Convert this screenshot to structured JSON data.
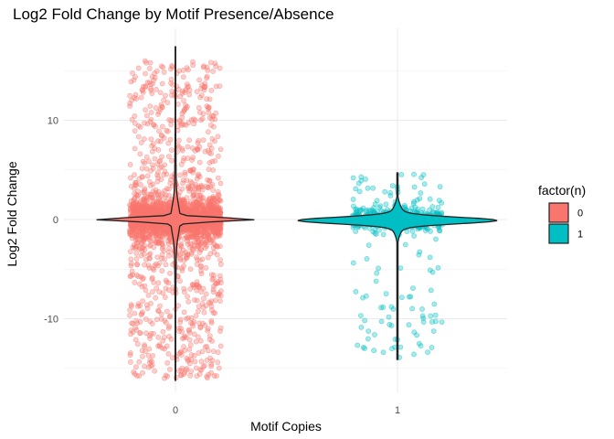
{
  "chart_data": {
    "type": "violin+jitter",
    "title": "Log2 Fold Change by Motif Presence/Absence",
    "xlabel": "Motif Copies",
    "ylabel": "Log2 Fold Change",
    "categories": [
      "0",
      "1"
    ],
    "yticks": [
      -10,
      0,
      10
    ],
    "ytick_labels": [
      "-10",
      "0",
      "10"
    ],
    "ylim": [
      -16.8,
      18.2
    ],
    "grid": true,
    "legend": {
      "title": "factor(n)",
      "position": "right",
      "entries": [
        "0",
        "1"
      ]
    },
    "colors": {
      "0": "#F8766D",
      "1": "#00BFC4",
      "outline": "#222222",
      "grid": "#ebebeb"
    },
    "series": [
      {
        "category": "0",
        "color": "#F8766D",
        "ymin": -16.2,
        "ymax": 17.4,
        "approx_points": 2500,
        "violin_halfwidth_at_0": 0.36
      },
      {
        "category": "1",
        "color": "#00BFC4",
        "ymin": -14.1,
        "ymax": 4.7,
        "approx_points": 500,
        "violin_halfwidth_at_0": 0.45
      }
    ]
  }
}
